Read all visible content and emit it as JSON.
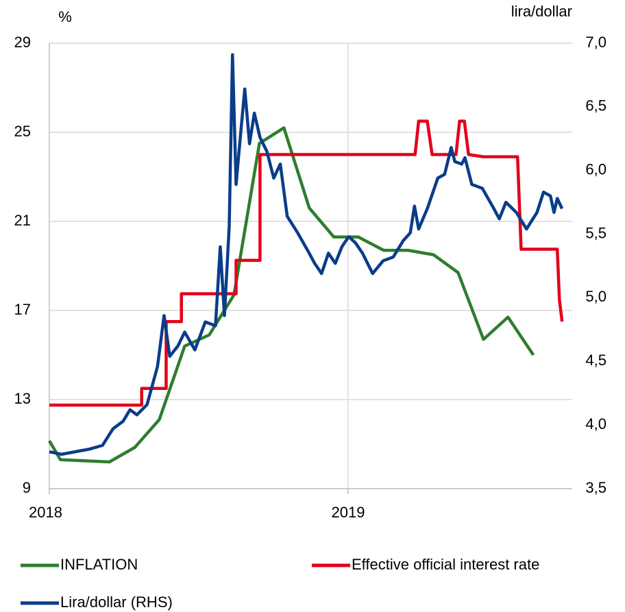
{
  "chart_data": {
    "type": "line",
    "ylabel": "%",
    "y2label": "lira/dollar",
    "xlim": [
      2018,
      2019.75
    ],
    "xticks": [
      2018,
      2019
    ],
    "ylim": [
      9,
      29
    ],
    "yticks": [
      9,
      13,
      17,
      21,
      25,
      29
    ],
    "y2lim": [
      3.5,
      7.0
    ],
    "y2ticks": [
      {
        "value": 3.5,
        "label": "3,5"
      },
      {
        "value": 4.0,
        "label": "4,0"
      },
      {
        "value": 4.5,
        "label": "4,5"
      },
      {
        "value": 5.0,
        "label": "5,0"
      },
      {
        "value": 5.5,
        "label": "5,5"
      },
      {
        "value": 6.0,
        "label": "6,0"
      },
      {
        "value": 6.5,
        "label": "6,5"
      },
      {
        "value": 7.0,
        "label": "7,0"
      }
    ],
    "grid": true,
    "series": [
      {
        "name": "INFLATION",
        "color": "#2e7d2e",
        "x": [
          2018.0,
          2018.037,
          2018.201,
          2018.286,
          2018.368,
          2018.453,
          2018.535,
          2018.618,
          2018.703,
          2018.785,
          2018.87,
          2018.952,
          2019.034,
          2019.119,
          2019.201,
          2019.286,
          2019.368,
          2019.453,
          2019.535,
          2019.62
        ],
        "values": [
          11.15,
          10.3,
          10.2,
          10.85,
          12.1,
          15.4,
          15.9,
          17.7,
          24.5,
          25.2,
          21.6,
          20.3,
          20.3,
          19.7,
          19.7,
          19.5,
          18.7,
          15.7,
          16.7,
          15.0
        ]
      },
      {
        "name": "Effective official interest rate",
        "color": "#e3001b",
        "x": [
          2018.0,
          2018.309,
          2018.309,
          2018.391,
          2018.391,
          2018.442,
          2018.442,
          2018.625,
          2018.625,
          2018.705,
          2018.705,
          2019.224,
          2019.236,
          2019.265,
          2019.281,
          2019.361,
          2019.373,
          2019.389,
          2019.403,
          2019.453,
          2019.567,
          2019.579,
          2019.7,
          2019.707,
          2019.716
        ],
        "values": [
          12.75,
          12.75,
          13.5,
          13.5,
          16.5,
          16.5,
          17.75,
          17.75,
          19.25,
          19.25,
          24,
          24,
          25.5,
          25.5,
          24,
          24,
          25.5,
          25.5,
          24,
          23.9,
          23.9,
          19.75,
          19.75,
          17.5,
          16.5
        ]
      },
      {
        "name": "Lira/dollar (RHS)",
        "color": "#0a3d8a",
        "axis": "y2",
        "x": [
          2018.0,
          2018.041,
          2018.087,
          2018.133,
          2018.178,
          2018.213,
          2018.247,
          2018.27,
          2018.293,
          2018.327,
          2018.362,
          2018.384,
          2018.403,
          2018.43,
          2018.453,
          2018.487,
          2018.522,
          2018.556,
          2018.572,
          2018.586,
          2018.602,
          2018.613,
          2018.625,
          2018.636,
          2018.654,
          2018.67,
          2018.686,
          2018.705,
          2018.728,
          2018.751,
          2018.773,
          2018.796,
          2018.831,
          2018.865,
          2018.888,
          2018.911,
          2018.934,
          2018.957,
          2018.979,
          2019.002,
          2019.025,
          2019.048,
          2019.082,
          2019.117,
          2019.151,
          2019.185,
          2019.208,
          2019.222,
          2019.236,
          2019.265,
          2019.3,
          2019.323,
          2019.345,
          2019.357,
          2019.38,
          2019.391,
          2019.414,
          2019.449,
          2019.483,
          2019.506,
          2019.528,
          2019.563,
          2019.597,
          2019.632,
          2019.654,
          2019.677,
          2019.689,
          2019.7,
          2019.716
        ],
        "values": [
          3.79,
          3.77,
          3.79,
          3.81,
          3.84,
          3.97,
          4.03,
          4.12,
          4.08,
          4.16,
          4.46,
          4.86,
          4.54,
          4.62,
          4.73,
          4.59,
          4.81,
          4.78,
          5.4,
          4.86,
          5.56,
          6.91,
          5.89,
          6.18,
          6.64,
          6.21,
          6.45,
          6.26,
          6.15,
          5.94,
          6.05,
          5.64,
          5.51,
          5.37,
          5.27,
          5.19,
          5.35,
          5.27,
          5.4,
          5.48,
          5.43,
          5.35,
          5.19,
          5.29,
          5.32,
          5.45,
          5.51,
          5.72,
          5.54,
          5.7,
          5.94,
          5.97,
          6.18,
          6.07,
          6.05,
          6.1,
          5.89,
          5.86,
          5.72,
          5.62,
          5.75,
          5.67,
          5.54,
          5.67,
          5.83,
          5.8,
          5.67,
          5.78,
          5.7
        ]
      }
    ]
  }
}
